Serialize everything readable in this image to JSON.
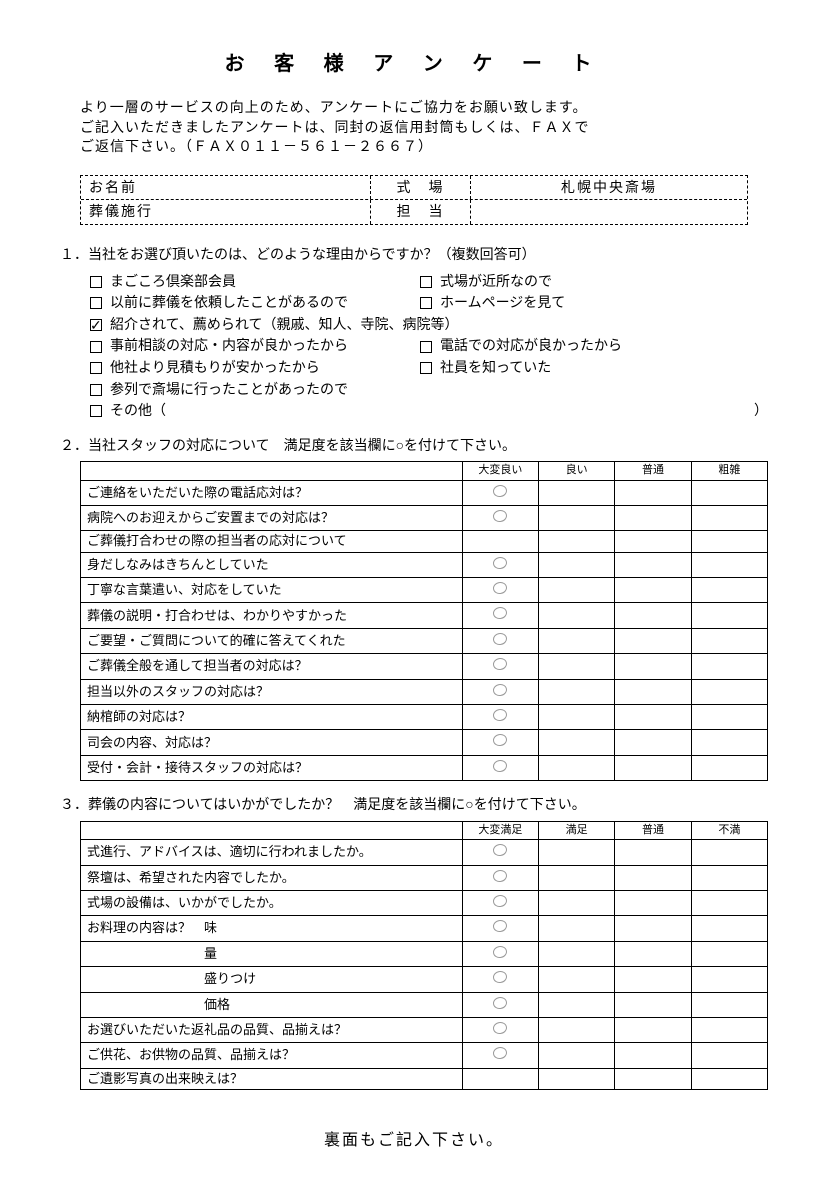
{
  "title": "お 客 様 ア ン ケ ー ト",
  "intro_line1": "より一層のサービスの向上のため、アンケートにご協力をお願い致します。",
  "intro_line2": "ご記入いただきましたアンケートは、同封の返信用封筒もしくは、ＦＡＸで",
  "intro_line3": "ご返信下さい。（ＦＡＸ０１１－５６１－２６６７）",
  "info": {
    "name_label": "お名前",
    "venue_label": "式　場",
    "venue_value": "札幌中央斎場",
    "service_label": "葬儀施行",
    "staff_label": "担　当"
  },
  "q1": {
    "title": "１．当社をお選び頂いたのは、どのような理由からですか？（複数回答可）",
    "options_left": [
      {
        "label": "まごころ倶楽部会員",
        "checked": false
      },
      {
        "label": "以前に葬儀を依頼したことがあるので",
        "checked": false
      },
      {
        "label": "紹介されて、薦められて（親戚、知人、寺院、病院等）",
        "checked": true
      },
      {
        "label": "事前相談の対応・内容が良かったから",
        "checked": false
      },
      {
        "label": "他社より見積もりが安かったから",
        "checked": false
      },
      {
        "label": "参列で斎場に行ったことがあったので",
        "checked": false
      },
      {
        "label": "その他（",
        "checked": false
      }
    ],
    "options_right": [
      {
        "label": "式場が近所なので",
        "checked": false
      },
      {
        "label": "ホームページを見て",
        "checked": false
      },
      {
        "label": "",
        "checked": null
      },
      {
        "label": "電話での対応が良かったから",
        "checked": false
      },
      {
        "label": "社員を知っていた",
        "checked": false
      }
    ],
    "other_close": "）"
  },
  "q2": {
    "title": "２．当社スタッフの対応について　満足度を該当欄に○を付けて下さい。",
    "headers": [
      "",
      "大変良い",
      "良い",
      "普通",
      "粗雑"
    ],
    "rows": [
      {
        "q": "ご連絡をいただいた際の電話応対は？",
        "mark": 0,
        "dashed": false
      },
      {
        "q": "病院へのお迎えからご安置までの対応は？",
        "mark": 0,
        "dashed": false
      },
      {
        "q": "ご葬儀打合わせの際の担当者の応対について",
        "mark": null,
        "dashed": false
      },
      {
        "q": "身だしなみはきちんとしていた",
        "mark": 0,
        "dashed": true
      },
      {
        "q": "丁寧な言葉遣い、対応をしていた",
        "mark": 0,
        "dashed": true
      },
      {
        "q": "葬儀の説明・打合わせは、わかりやすかった",
        "mark": 0,
        "dashed": true
      },
      {
        "q": "ご要望・ご質問について的確に答えてくれた",
        "mark": 0,
        "dashed": true
      },
      {
        "q": "ご葬儀全般を通して担当者の対応は？",
        "mark": 0,
        "dashed": false
      },
      {
        "q": "担当以外のスタッフの対応は？",
        "mark": 0,
        "dashed": false
      },
      {
        "q": "納棺師の対応は？",
        "mark": 0,
        "dashed": false
      },
      {
        "q": "司会の内容、対応は？",
        "mark": 0,
        "dashed": false
      },
      {
        "q": "受付・会計・接待スタッフの対応は？",
        "mark": 0,
        "dashed": false
      }
    ]
  },
  "q3": {
    "title": "３．葬儀の内容についてはいかがでしたか？　満足度を該当欄に○を付けて下さい。",
    "headers": [
      "",
      "大変満足",
      "満足",
      "普通",
      "不満"
    ],
    "rows": [
      {
        "q": "式進行、アドバイスは、適切に行われましたか。",
        "mark": 0,
        "dashed": false
      },
      {
        "q": "祭壇は、希望された内容でしたか。",
        "mark": 0,
        "dashed": false
      },
      {
        "q": "式場の設備は、いかがでしたか。",
        "mark": 0,
        "dashed": false
      },
      {
        "q": "お料理の内容は？　味",
        "mark": 0,
        "dashed": false
      },
      {
        "q": "　　　　　　　　　量",
        "mark": 0,
        "dashed": true
      },
      {
        "q": "　　　　　　　　　盛りつけ",
        "mark": 0,
        "dashed": true
      },
      {
        "q": "　　　　　　　　　価格",
        "mark": 0,
        "dashed": true
      },
      {
        "q": "お選びいただいた返礼品の品質、品揃えは？",
        "mark": 0,
        "dashed": false
      },
      {
        "q": "ご供花、お供物の品質、品揃えは？",
        "mark": 0,
        "dashed": false
      },
      {
        "q": "ご遺影写真の出来映えは？",
        "mark": null,
        "dashed": false
      }
    ]
  },
  "footer": "裏面もご記入下さい。"
}
